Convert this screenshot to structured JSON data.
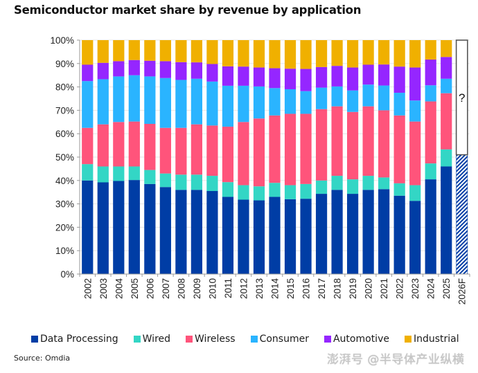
{
  "chart_data": {
    "type": "bar",
    "stacked": true,
    "title": "Semiconductor market share by revenue by application",
    "xlabel": "",
    "ylabel": "",
    "ylim": [
      0,
      100
    ],
    "y_ticks": [
      "0%",
      "10%",
      "20%",
      "30%",
      "40%",
      "50%",
      "60%",
      "70%",
      "80%",
      "90%",
      "100%"
    ],
    "grid": true,
    "legend_position": "bottom",
    "categories": [
      "2002",
      "2003",
      "2004",
      "2005",
      "2006",
      "2007",
      "2008",
      "2009",
      "2010",
      "2011",
      "2012",
      "2013",
      "2014",
      "2015",
      "2016",
      "2017",
      "2018",
      "2019",
      "2020",
      "2021",
      "2022",
      "2023",
      "2024",
      "2025",
      "2026F"
    ],
    "series": [
      {
        "name": "Data Processing",
        "color": "#003DA5",
        "values": [
          40.0,
          39.2,
          39.8,
          40.2,
          38.5,
          37.2,
          36.0,
          36.0,
          35.5,
          33.0,
          31.8,
          31.5,
          33.0,
          32.0,
          32.2,
          34.3,
          36.0,
          34.3,
          36.0,
          36.3,
          33.5,
          31.3,
          40.5,
          46.0,
          51.0
        ]
      },
      {
        "name": "Wired",
        "color": "#33D6C5",
        "values": [
          7.0,
          6.8,
          6.2,
          5.8,
          6.0,
          5.8,
          6.5,
          6.5,
          6.5,
          6.3,
          6.2,
          6.0,
          6.0,
          6.0,
          6.3,
          5.7,
          6.0,
          6.2,
          6.0,
          5.0,
          5.3,
          6.7,
          6.8,
          7.3,
          null
        ]
      },
      {
        "name": "Wireless",
        "color": "#FF547B",
        "values": [
          15.5,
          18.0,
          19.0,
          19.2,
          19.7,
          19.5,
          20.0,
          21.5,
          21.5,
          23.7,
          27.0,
          29.0,
          28.8,
          30.5,
          30.0,
          30.5,
          29.7,
          28.8,
          29.7,
          28.7,
          29.0,
          27.2,
          26.5,
          24.0,
          null
        ]
      },
      {
        "name": "Consumer",
        "color": "#2AB4FF",
        "values": [
          20.0,
          19.3,
          19.5,
          19.8,
          20.3,
          21.3,
          20.5,
          19.5,
          18.8,
          17.5,
          15.5,
          13.7,
          11.7,
          10.5,
          9.7,
          9.2,
          8.5,
          9.2,
          9.3,
          10.6,
          9.7,
          9.0,
          6.9,
          6.2,
          null
        ]
      },
      {
        "name": "Automotive",
        "color": "#9526FF",
        "values": [
          7.0,
          7.0,
          6.5,
          6.5,
          6.7,
          7.2,
          7.6,
          7.0,
          7.5,
          8.3,
          8.2,
          8.1,
          8.5,
          8.8,
          9.5,
          8.8,
          8.8,
          9.8,
          8.5,
          9.0,
          11.2,
          14.1,
          11.0,
          9.3,
          null
        ]
      },
      {
        "name": "Industrial",
        "color": "#F0B000",
        "values": [
          10.5,
          9.7,
          9.0,
          8.5,
          8.8,
          9.0,
          9.4,
          9.5,
          10.2,
          11.2,
          11.3,
          11.7,
          12.0,
          12.2,
          12.3,
          11.5,
          11.0,
          11.7,
          10.5,
          10.4,
          11.3,
          11.7,
          8.3,
          7.2,
          null
        ]
      }
    ],
    "forecast": {
      "category": "2026F",
      "known_series": "Data Processing",
      "known_value": 51.0,
      "unknown_label": "?",
      "hatched": true
    }
  },
  "legend": [
    {
      "label": "Data Processing",
      "color": "#003DA5"
    },
    {
      "label": "Wired",
      "color": "#33D6C5"
    },
    {
      "label": "Wireless",
      "color": "#FF547B"
    },
    {
      "label": "Consumer",
      "color": "#2AB4FF"
    },
    {
      "label": "Automotive",
      "color": "#9526FF"
    },
    {
      "label": "Industrial",
      "color": "#F0B000"
    }
  ],
  "source": "Source: Omdia",
  "watermark": "澎湃号 @半导体产业纵横"
}
